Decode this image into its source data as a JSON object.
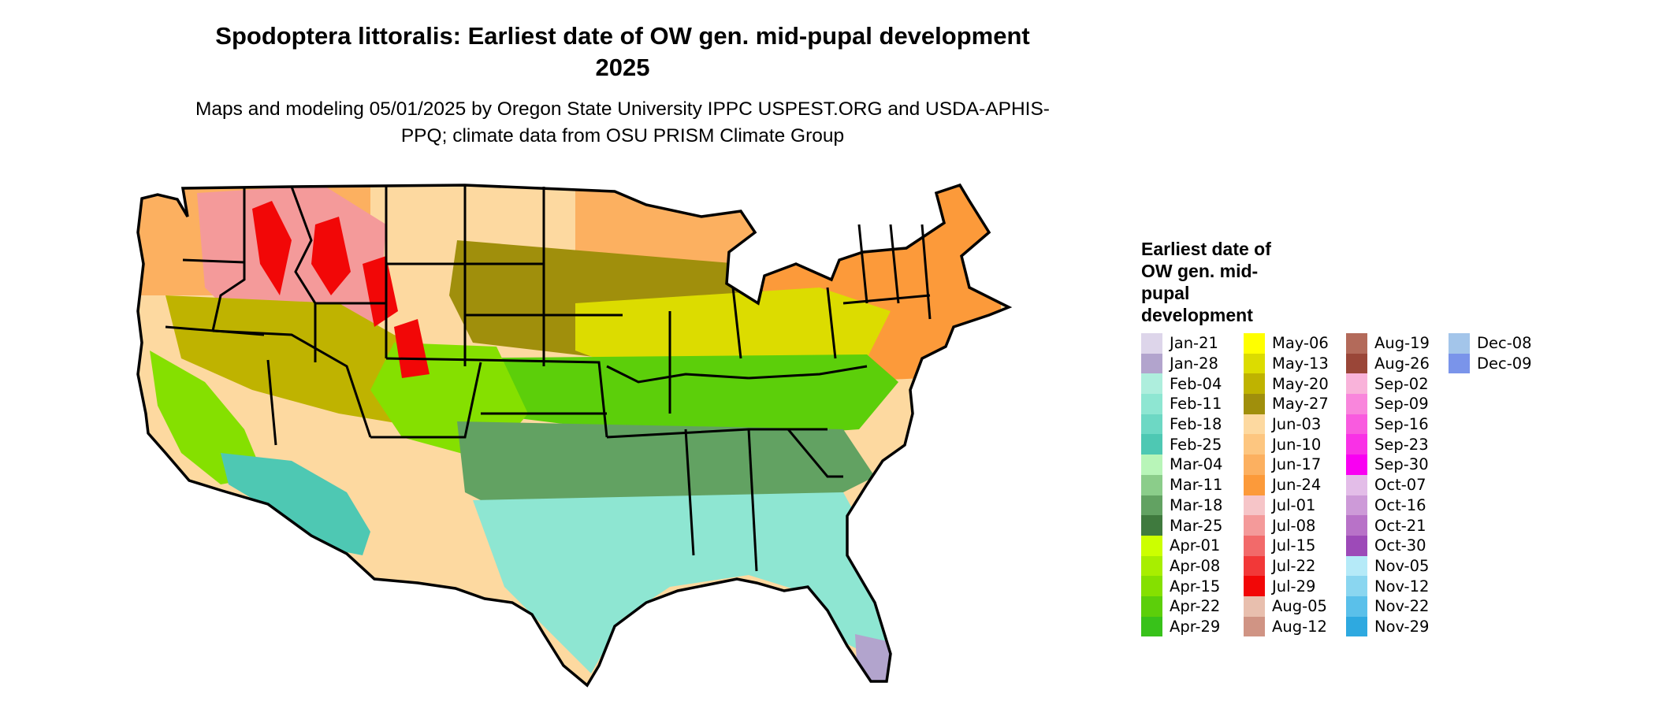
{
  "title": "Spodoptera littoralis: Earliest date of OW gen. mid-pupal development 2025",
  "subtitle": "Maps and modeling 05/01/2025 by Oregon State University IPPC USPEST.ORG and USDA-APHIS-PPQ; climate data from OSU PRISM Climate Group",
  "legend": {
    "title": "Earliest date of OW gen. mid-pupal development",
    "items": [
      {
        "label": "Jan-21",
        "color": "#ddd5ea"
      },
      {
        "label": "Jan-28",
        "color": "#b2a4cd"
      },
      {
        "label": "Feb-04",
        "color": "#aeeedd"
      },
      {
        "label": "Feb-11",
        "color": "#8ee6d2"
      },
      {
        "label": "Feb-18",
        "color": "#6dd8c4"
      },
      {
        "label": "Feb-25",
        "color": "#4ec8b3"
      },
      {
        "label": "Mar-04",
        "color": "#b8f5b8"
      },
      {
        "label": "Mar-11",
        "color": "#8bcd8a"
      },
      {
        "label": "Mar-18",
        "color": "#62a262"
      },
      {
        "label": "Mar-25",
        "color": "#3f7a3e"
      },
      {
        "label": "Apr-01",
        "color": "#ccff00"
      },
      {
        "label": "Apr-08",
        "color": "#a8ee00"
      },
      {
        "label": "Apr-15",
        "color": "#85e000"
      },
      {
        "label": "Apr-22",
        "color": "#5ccf0a"
      },
      {
        "label": "Apr-29",
        "color": "#38c21a"
      },
      {
        "label": "May-06",
        "color": "#ffff00"
      },
      {
        "label": "May-13",
        "color": "#dcdc00"
      },
      {
        "label": "May-20",
        "color": "#bfb300"
      },
      {
        "label": "May-27",
        "color": "#a08f0c"
      },
      {
        "label": "Jun-03",
        "color": "#fdd9a0"
      },
      {
        "label": "Jun-10",
        "color": "#fdc680"
      },
      {
        "label": "Jun-17",
        "color": "#fcb060"
      },
      {
        "label": "Jun-24",
        "color": "#fc9a3a"
      },
      {
        "label": "Jul-01",
        "color": "#f6c5c8"
      },
      {
        "label": "Jul-08",
        "color": "#f49a9a"
      },
      {
        "label": "Jul-15",
        "color": "#f26a6a"
      },
      {
        "label": "Jul-22",
        "color": "#f23838"
      },
      {
        "label": "Jul-29",
        "color": "#f20707"
      },
      {
        "label": "Aug-05",
        "color": "#e8bfae"
      },
      {
        "label": "Aug-12",
        "color": "#d09484"
      },
      {
        "label": "Aug-19",
        "color": "#b36a5a"
      },
      {
        "label": "Aug-26",
        "color": "#9a4638"
      },
      {
        "label": "Sep-02",
        "color": "#f9b3da"
      },
      {
        "label": "Sep-09",
        "color": "#f986dc"
      },
      {
        "label": "Sep-16",
        "color": "#f95bdf"
      },
      {
        "label": "Sep-23",
        "color": "#f931e6"
      },
      {
        "label": "Sep-30",
        "color": "#f900f2"
      },
      {
        "label": "Oct-07",
        "color": "#e3bde8"
      },
      {
        "label": "Oct-16",
        "color": "#cd9ad8"
      },
      {
        "label": "Oct-21",
        "color": "#b872c8"
      },
      {
        "label": "Oct-30",
        "color": "#9d4ab8"
      },
      {
        "label": "Nov-05",
        "color": "#b5eaf8"
      },
      {
        "label": "Nov-12",
        "color": "#8ad6f0"
      },
      {
        "label": "Nov-22",
        "color": "#5ac0ea"
      },
      {
        "label": "Nov-29",
        "color": "#2ea9e0"
      },
      {
        "label": "Dec-08",
        "color": "#a3c5ea"
      },
      {
        "label": "Dec-09",
        "color": "#7a94ea"
      }
    ]
  },
  "map": {
    "region": "contiguous United States",
    "regions": [
      {
        "area": "pacific-northwest",
        "color": "#fcb060"
      },
      {
        "area": "northern-rockies",
        "color": "#f49a9a"
      },
      {
        "area": "high-mountains",
        "color": "#f20707"
      },
      {
        "area": "northern-plains",
        "color": "#fdd9a0"
      },
      {
        "area": "great-lakes",
        "color": "#fcb060"
      },
      {
        "area": "northeast",
        "color": "#fc9a3a"
      },
      {
        "area": "corn-belt",
        "color": "#a08f0c"
      },
      {
        "area": "ohio-valley",
        "color": "#dcdc00"
      },
      {
        "area": "mid-south",
        "color": "#5ccf0a"
      },
      {
        "area": "southern-plains",
        "color": "#85e000"
      },
      {
        "area": "great-basin",
        "color": "#bfb300"
      },
      {
        "area": "california-valley",
        "color": "#85e000"
      },
      {
        "area": "desert-southwest",
        "color": "#4ec8b3"
      },
      {
        "area": "gulf-coastal-plain",
        "color": "#62a262"
      },
      {
        "area": "gulf-coast",
        "color": "#8ee6d2"
      },
      {
        "area": "south-florida",
        "color": "#b2a4cd"
      }
    ]
  }
}
